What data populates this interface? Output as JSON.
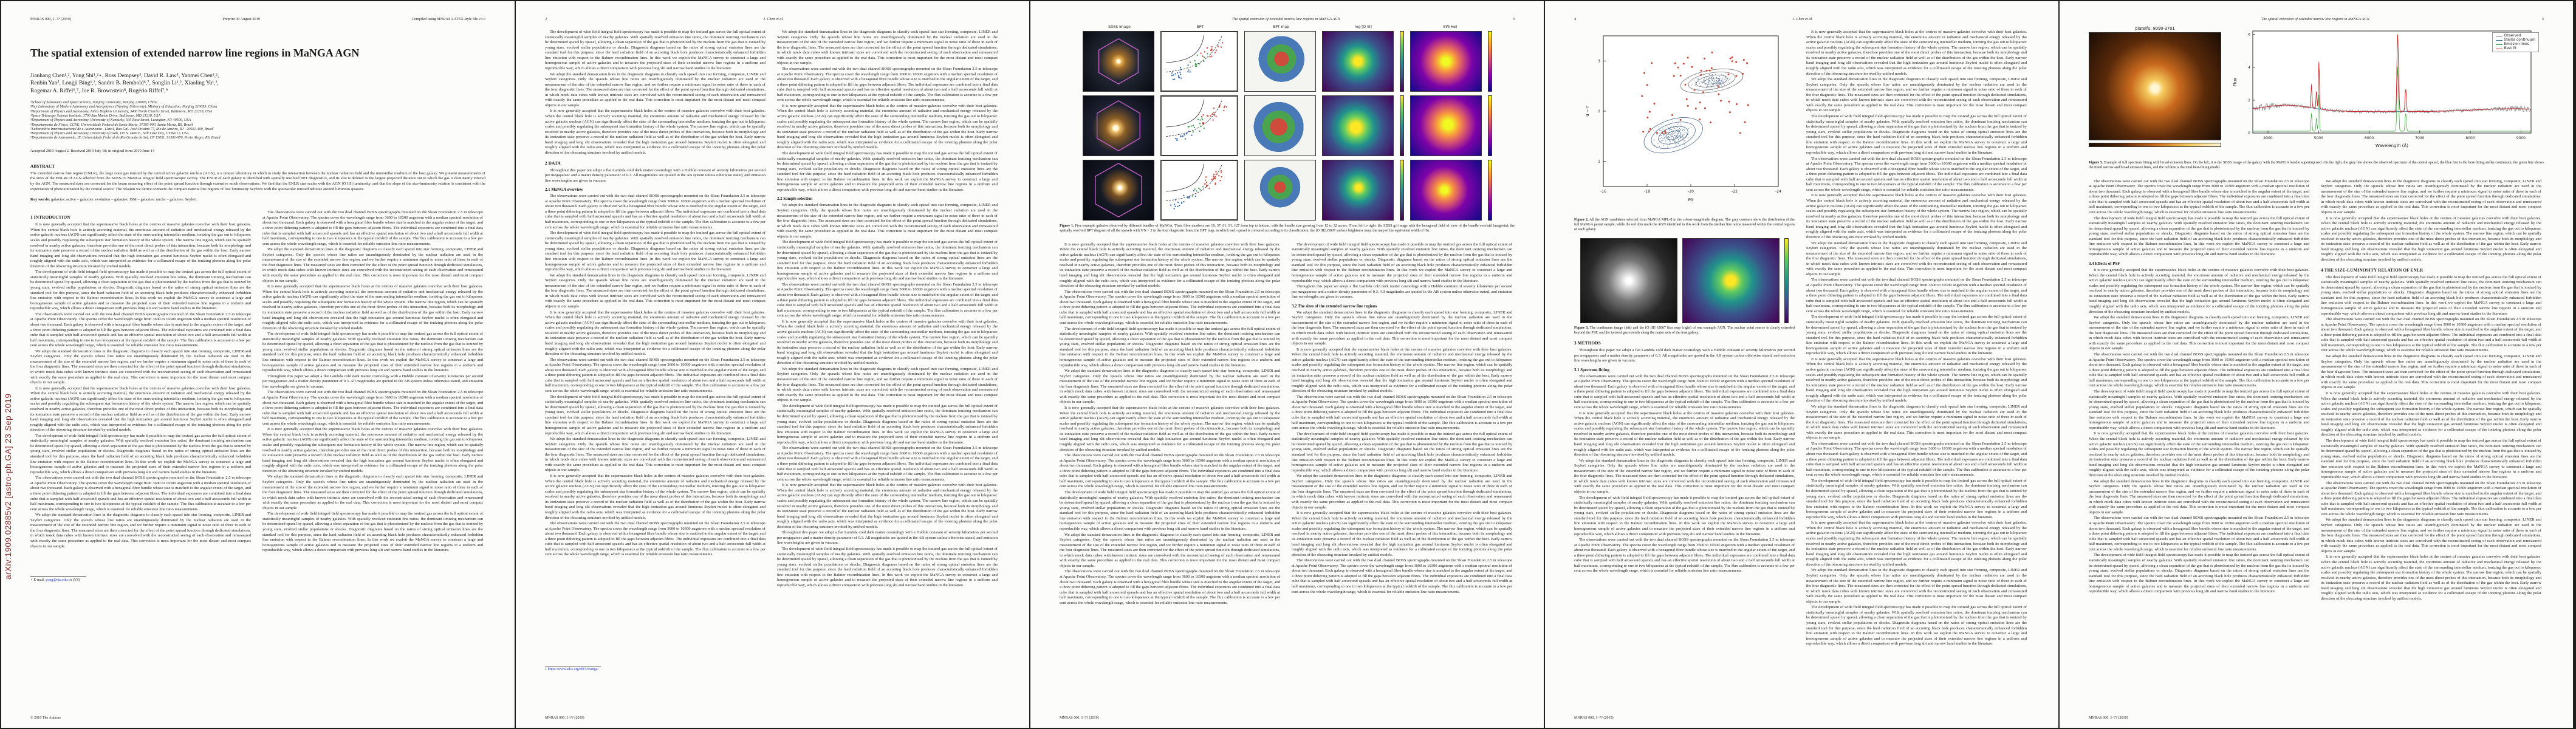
{
  "meta": {
    "journal_left": "MNRAS 000, 1–?? (2019)",
    "preprint": "Preprint 30 August 2019",
    "compiled": "Compiled using MNRAS LATEX style file v3.0",
    "copyright": "© 2019 The Authors",
    "footer_journal": "MNRAS 000, 1–?? (2019)",
    "arxiv_banner": "arXiv:1909.02885v2  [astro-ph.GA]  23 Sep 2019"
  },
  "running": {
    "title_header": "The spatial extension of extended narrow line regions in MaNGA AGN",
    "authors_header": "J. Chen et al."
  },
  "pagination": {
    "p2": "2",
    "p3": "3",
    "p4": "4",
    "p5": "5"
  },
  "title": "The spatial extension of extended narrow line regions in MaNGA AGN",
  "authors": {
    "l1": "Jianhang Chen¹,², Yong Shi¹,²⋆, Ross Dempsey³, David R. Law⁴, Yanmei Chen¹,²,",
    "l2": "Renbin Yan⁵, Longji Bing¹,², Sandro B. Rembold⁶,⁷, Songlin Li¹,², Xiaoling Yu¹,²,",
    "l3": "Rogemar A. Riffel⁶,⁷, Joe R. Brownstein⁸, Rogério Riffel⁷,⁹"
  },
  "affiliations": [
    "¹School of Astronomy and Space Science, Nanjing University, Nanjing 210093, China",
    "²Key Laboratory of Modern Astronomy and Astrophysics (Nanjing University), Ministry of Education, Nanjing 210093, China",
    "³Department of Physics and Astronomy, Johns Hopkins University, 3400 North Charles Street, Baltimore, MD 21218, USA",
    "⁴Space Telescope Science Institute, 3700 San Martin Drive, Baltimore, MD 21218, USA",
    "⁵Department of Physics and Astronomy, University of Kentucky, 505 Rose Street, Lexington, KY 40506, USA",
    "⁶Departamento de Física, CCNE, Universidade Federal de Santa Maria, 97105-900, Santa Maria, RS, Brazil",
    "⁷Laboratório Interinstitucional de e-Astronomia - LIneA, Rua Gal. José Cristino 77, Rio de Janeiro, RJ - 20921-400, Brazil",
    "⁸Department of Physics and Astronomy, University of Utah, 115 S. 1400 E., Salt Lake City, UT 84112, USA",
    "⁹Departamento de Astronomia, IF, Universidade Federal do Rio Grande do Sul, CP 15051, 91501-970, Porto Alegre, RS, Brazil"
  ],
  "dates": "Accepted 2019 August 2. Received 2019 July 18; in original form 2019 June 14",
  "abstract_label": "ABSTRACT",
  "abstract": "The extended narrow line region (ENLR), the large scale gas ionized by the central active galactic nucleus (AGN), is a unique laboratory in which to study the interaction between the nuclear radiation field and the interstellar medium of the host galaxy. We present measurements of the sizes of the ENLRs of AGN selected from the SDSS-IV MaNGA integral field spectroscopic survey. The ENLR of each galaxy is identified with spatially resolved BPT diagnostics, and its size is defined as the largest projected distance out to which the gas is dominantly ionized by the AGN. The measured sizes are corrected for the beam smearing effect of the point spread function through extensive mock observations. We find that the ENLR size scales with the AGN [O III] luminosity, and that the slope of the size-luminosity relation is consistent with the expectation of photoionization by the central source. The relation we derive connects the compact narrow line regions of low luminosity Seyferts with the spectacular ionized nebulae around luminous quasars.",
  "kw_label": "Key words:",
  "keywords": " galaxies: active – galaxies: evolution – galaxies: ISM – galaxies: nuclei – galaxies: Seyfert",
  "sections": {
    "s1": "1 INTRODUCTION",
    "s2": "2 DATA",
    "s21": "2.1 MaNGA overview",
    "s22": "2.2 Sample selection",
    "s3": "3 METHODS",
    "s31": "3.1 Spectrum fitting",
    "s32": "3.2 The sizes of the extended narrow line regions",
    "s34": "3.4 Effects of PSF",
    "s4": "4 THE SIZE-LUMINOSITY RELATION OF ENLR"
  },
  "filler": {
    "a": "It is now generally accepted that the supermassive black holes at the centres of massive galaxies coevolve with their host galaxies. When the central black hole is actively accreting material, the enormous amount of radiative and mechanical energy released by the active galactic nucleus (AGN) can significantly affect the state of the surrounding interstellar medium, ionizing the gas out to kiloparsec scales and possibly regulating the subsequent star formation history of the whole system. The narrow line region, which can be spatially resolved in nearby active galaxies, therefore provides one of the most direct probes of this interaction, because both its morphology and its ionization state preserve a record of the nuclear radiation field as well as of the distribution of the gas within the host. Early narrow band imaging and long slit observations revealed that the high ionization gas around luminous Seyfert nuclei is often elongated and roughly aligned with the radio axis, which was interpreted as evidence for a collimated escape of the ionizing photons along the polar direction of the obscuring structure invoked by unified models.",
    "b": "The development of wide field integral field spectroscopy has made it possible to map the ionized gas across the full optical extent of statistically meaningful samples of nearby galaxies. With spatially resolved emission line ratios, the dominant ionizing mechanism can be determined spaxel by spaxel, allowing a clean separation of the gas that is photoionized by the nucleus from the gas that is ionized by young stars, evolved stellar populations or shocks. Diagnostic diagrams based on the ratios of strong optical emission lines are the standard tool for this purpose, since the hard radiation field of an accreting black hole produces characteristically enhanced forbidden line emission with respect to the Balmer recombination lines. In this work we exploit the MaNGA survey to construct a large and homogeneous sample of active galaxies and to measure the projected sizes of their extended narrow line regions in a uniform and reproducible way, which allows a direct comparison with previous long slit and narrow band studies in the literature.",
    "c": "The observations were carried out with the two dual channel BOSS spectrographs mounted on the Sloan Foundation 2.5 m telescope at Apache Point Observatory. The spectra cover the wavelength range from 3600 to 10300 angstrom with a median spectral resolution of about two thousand. Each galaxy is observed with a hexagonal fibre bundle whose size is matched to the angular extent of the target, and a three point dithering pattern is adopted to fill the gaps between adjacent fibres. The individual exposures are combined into a final data cube that is sampled with half arcsecond spaxels and has an effective spatial resolution of about two and a half arcseconds full width at half maximum, corresponding to one to two kiloparsecs at the typical redshift of the sample. The flux calibration is accurate to a few per cent across the whole wavelength range, which is essential for reliable emission line ratio measurements.",
    "d": "We adopt the standard demarcation lines in the diagnostic diagrams to classify each spaxel into star forming, composite, LINER and Seyfert categories. Only the spaxels whose line ratios are unambiguously dominated by the nuclear radiation are used in the measurement of the size of the extended narrow line region, and we further require a minimum signal to noise ratio of three in each of the four diagnostic lines. The measured sizes are then corrected for the effect of the point spread function through dedicated simulations, in which mock data cubes with known intrinsic sizes are convolved with the reconstructed seeing of each observation and remeasured with exactly the same procedure as applied to the real data. This correction is most important for the most distant and most compact objects in our sample.",
    "e": "Throughout this paper we adopt a flat Lambda cold dark matter cosmology with a Hubble constant of seventy kilometres per second per megaparsec and a matter density parameter of 0.3. All magnitudes are quoted in the AB system unless otherwise stated, and emission line wavelengths are given in vacuum."
  },
  "columns": {
    "p1L": [
      "h:s1",
      "p:a",
      "p:b",
      "p:c",
      "p:d",
      "p:a",
      "p:b",
      "p:c",
      "p:d"
    ],
    "p1R": [
      "p:c",
      "p:d",
      "p:a",
      "p:b",
      "p:e",
      "p:c",
      "p:a",
      "p:d",
      "p:b"
    ],
    "p2L": [
      "p:b",
      "p:d",
      "p:a",
      "h:s2",
      "p:e",
      "hs:s21",
      "p:c",
      "p:b",
      "p:d",
      "p:a",
      "p:c",
      "p:b",
      "p:d",
      "p:a",
      "p:c"
    ],
    "p2R": [
      "p:d",
      "p:c",
      "p:a",
      "p:b",
      "hs:s22",
      "p:d",
      "p:b",
      "p:c",
      "p:a",
      "p:d",
      "p:b",
      "p:c",
      "p:a",
      "p:e",
      "p:b"
    ],
    "p3L": [
      "p:a",
      "p:c",
      "p:b",
      "p:d",
      "p:a",
      "p:c",
      "p:b",
      "p:d",
      "p:c"
    ],
    "p3R": [
      "p:b",
      "p:e",
      "hs:s32",
      "p:d",
      "p:a",
      "p:c",
      "p:b",
      "p:d",
      "p:a",
      "p:c"
    ],
    "p4L": [
      "h:s3",
      "p:e",
      "hs:s31",
      "p:c",
      "p:a",
      "p:d",
      "p:b",
      "p:c"
    ],
    "p4R": [
      "p:a",
      "p:d",
      "p:b",
      "p:c",
      "p:a",
      "p:d",
      "p:c",
      "p:b",
      "p:a",
      "p:d",
      "p:c",
      "p:b",
      "p:a",
      "p:d",
      "p:b"
    ],
    "p5L": [
      "p:c",
      "p:b",
      "hs:s34",
      "p:a",
      "p:d",
      "p:c",
      "p:b",
      "p:a",
      "p:d",
      "p:c",
      "p:b"
    ],
    "p5R": [
      "p:d",
      "p:a",
      "h:s4",
      "p:b",
      "p:c",
      "p:d",
      "p:a",
      "p:b",
      "p:c",
      "p:d",
      "p:a"
    ]
  },
  "footnotes": {
    "p1_star_pre": "⋆ E-mail: ",
    "p1_star_email": "yong@nju.edu.cn",
    "p1_star_post": " (YS)",
    "p2_num": "1 ",
    "p2_url": "https://www.sdss.org/dr15/manga/"
  },
  "figures": {
    "fig1": {
      "label": "Figure 1.",
      "caption": " Five example galaxies observed by different bundles of MaNGA. Their fibre numbers are 19, 37, 61, 91, 127 from top to bottom, with the bundle size growing from 12 to 32 arcsec. From left to right: the SDSS gri image with the hexagonal field of view of the bundle overlaid (magenta); the spatially resolved BPT diagram of all the spaxels with S/N > 3 in the four diagnostic lines; the BPT map, in which each spaxel is coloured according to its classification; the [O III] λ5007 surface brightness map; the map of the equivalent width of Hα.",
      "col_headers": [
        "SDSS image",
        "BPT",
        "BPT map",
        "log [O III]",
        "EW(Hα)"
      ]
    },
    "fig2": {
      "label": "Figure 2.",
      "caption": " All the AGN candidates selected from MaNGA MPL-8 in the colour–magnitude diagram. The grey contours show the distribution of the full MaNGA parent sample, while the red dots mark the AGN identified in this work from the median line ratios measured within the central regions of each galaxy.",
      "xlabel": "Mr",
      "ylabel": "u − r"
    },
    "fig3": {
      "label": "Figure 3.",
      "caption": " The continuum image (left) and the [O III] λ5007 flux map (right) of one example AGN. The nuclear point source is clearly extended beyond the PSF, and the ionized gas extends along the major axis of the host galaxy."
    },
    "fig5": {
      "label": "Figure 5.",
      "caption": " Example of full spectrum fitting with broad emission lines. On the left, it is the SDSS image of the galaxy with the MaNGA bundle superimposed. On the right, the grey line shows the observed spectrum of the central spaxel, the blue line is the best-fitting stellar continuum, the green line shows the fitted narrow and broad emission lines, and the red line is the total best-fitting model.",
      "plateifu": "plateifu: 8090-3701",
      "xlabel": "Wavelength (Å)",
      "ylabel": "Flux",
      "legend": [
        "Observed",
        "Stellar continuum",
        "Emission lines",
        "Best fit"
      ]
    }
  },
  "colors": {
    "accent_link": "#2438c8",
    "arxiv_stamp": "#8a2f2f",
    "starforming_blue": "#3b6fb5",
    "composite_green": "#43a051",
    "seyfert_red": "#cc4433",
    "observed_gray": "#777777",
    "continuum_blue": "#1f77b4",
    "emission_green": "#2ca02c",
    "bestfit_red": "#d62728",
    "bundle_magenta": "#c861c8",
    "contour_blue": "#4a6b96",
    "sample_dot_blue": "#3a5f8a"
  },
  "chart_data": [
    {
      "id": "fig2_cmd",
      "type": "scatter",
      "xlabel": "Mr",
      "ylabel": "u − r",
      "xlim": [
        -16,
        -24
      ],
      "ylim": [
        0.5,
        3.5
      ],
      "x_ticks": [
        "-16",
        "-18",
        "-20",
        "-22",
        "-24"
      ],
      "y_ticks": [
        "1",
        "2",
        "3"
      ],
      "series": [
        {
          "name": "MaNGA parent sample",
          "style": "contours and small dots",
          "color": "#4a6b96"
        },
        {
          "name": "AGN candidates",
          "style": "dots",
          "color": "#cc4433"
        }
      ],
      "legend_position": "none",
      "grid": false
    },
    {
      "id": "fig5_spectrum",
      "type": "line",
      "xlabel": "Wavelength (Å)",
      "ylabel": "Flux",
      "xlim": [
        3700,
        9200
      ],
      "x_ticks": [
        "4000",
        "5000",
        "6000",
        "7000",
        "8000",
        "9000"
      ],
      "y_ticks": [
        "0",
        "2",
        "4",
        "6"
      ],
      "emission_lines": [
        {
          "name": "Hβ",
          "wavelength": 4861,
          "rel_height": 0.32
        },
        {
          "name": "[O III] λ4959",
          "wavelength": 4959,
          "rel_height": 0.25
        },
        {
          "name": "[O III] λ5007",
          "wavelength": 5007,
          "rel_height": 0.65
        },
        {
          "name": "[N II] λ6548",
          "wavelength": 6548,
          "rel_height": 0.3
        },
        {
          "name": "Hα",
          "wavelength": 6563,
          "rel_height": 1.0
        },
        {
          "name": "[N II] λ6583",
          "wavelength": 6583,
          "rel_height": 0.45
        },
        {
          "name": "[S II] λ6716",
          "wavelength": 6716,
          "rel_height": 0.22
        },
        {
          "name": "[S II] λ6731",
          "wavelength": 6731,
          "rel_height": 0.2
        }
      ],
      "legend": [
        "Observed",
        "Stellar continuum",
        "Emission lines",
        "Best fit"
      ],
      "legend_position": "upper right",
      "grid": false
    },
    {
      "id": "fig1_bpt_panels",
      "type": "scatter",
      "note": "Spatially resolved BPT diagrams for example galaxies; dots coloured star-forming blue, composite green, AGN red, with Kewley (solid) and Kauffmann (dashed) demarcation curves.",
      "xlabel": "log([N II]/Hα)",
      "ylabel": "log([O III]/Hβ)"
    }
  ]
}
